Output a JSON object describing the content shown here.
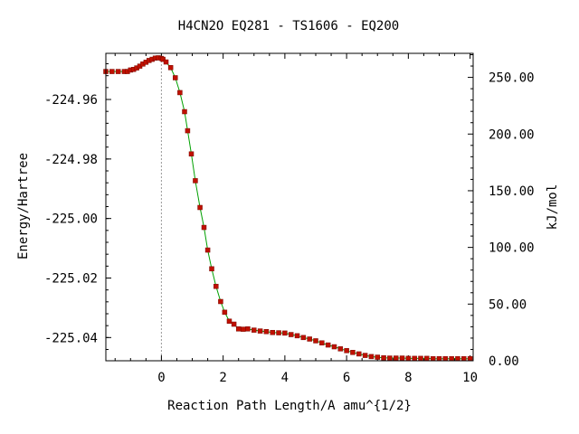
{
  "chart_data": {
    "type": "line",
    "title": "H4CN2O   EQ281 - TS1606 - EQ200",
    "xlabel": "Reaction Path Length/A amu^{1/2}",
    "ylabel": "Energy/Hartree",
    "y2label": "kJ/mol",
    "xlim": [
      -1.8,
      10.1
    ],
    "ylim": [
      -225.0478,
      -224.9445
    ],
    "y2lim": [
      0.0,
      271.2
    ],
    "x_ticks": [
      "0",
      "2",
      "4",
      "6",
      "8",
      "10"
    ],
    "y_ticks": [
      "-224.96",
      "-224.98",
      "-225.00",
      "-225.02",
      "-225.04"
    ],
    "y2_ticks": [
      "0.00",
      "50.00",
      "100.00",
      "150.00",
      "200.00",
      "250.00"
    ],
    "ts_marker_x": 0.0,
    "series": [
      {
        "x": [
          -1.8,
          -1.6,
          -1.4,
          -1.2,
          -1.1,
          -1.0,
          -0.9,
          -0.8,
          -0.7,
          -0.6,
          -0.5,
          -0.4,
          -0.3,
          -0.2,
          -0.1,
          0.0,
          0.05,
          0.15,
          0.3,
          0.45,
          0.6,
          0.75,
          0.85,
          0.97,
          1.1,
          1.25,
          1.38,
          1.5,
          1.63,
          1.77,
          1.92,
          2.05,
          2.2,
          2.35,
          2.5,
          2.65,
          2.8,
          3.0,
          3.2,
          3.4,
          3.6,
          3.8,
          4.0,
          4.2,
          4.4,
          4.6,
          4.8,
          5.0,
          5.2,
          5.4,
          5.6,
          5.8,
          6.0,
          6.2,
          6.4,
          6.6,
          6.8,
          7.0,
          7.2,
          7.4,
          7.6,
          7.8,
          8.0,
          8.2,
          8.4,
          8.6,
          8.8,
          9.0,
          9.2,
          9.4,
          9.6,
          9.8,
          10.0
        ],
        "y": [
          -224.9506,
          -224.9506,
          -224.9506,
          -224.9506,
          -224.9506,
          -224.9501,
          -224.9499,
          -224.9494,
          -224.9488,
          -224.9481,
          -224.9475,
          -224.9469,
          -224.9465,
          -224.9461,
          -224.946,
          -224.9462,
          -224.9465,
          -224.9474,
          -224.9493,
          -224.9527,
          -224.9577,
          -224.9641,
          -224.9705,
          -224.9783,
          -224.9873,
          -224.9963,
          -225.003,
          -225.0106,
          -225.0169,
          -225.0228,
          -225.0279,
          -225.0315,
          -225.0345,
          -225.0355,
          -225.0371,
          -225.0372,
          -225.0371,
          -225.0375,
          -225.0378,
          -225.038,
          -225.0383,
          -225.0384,
          -225.0385,
          -225.039,
          -225.0394,
          -225.04,
          -225.0405,
          -225.0411,
          -225.0418,
          -225.0425,
          -225.0431,
          -225.0438,
          -225.0444,
          -225.045,
          -225.0455,
          -225.046,
          -225.0464,
          -225.0466,
          -225.0468,
          -225.0469,
          -225.0469,
          -225.0469,
          -225.047,
          -225.047,
          -225.047,
          -225.047,
          -225.0471,
          -225.0471,
          -225.0471,
          -225.0471,
          -225.0471,
          -225.0471,
          -225.0471
        ],
        "line_color": "#00a000",
        "marker_color": "#c01000"
      }
    ]
  }
}
